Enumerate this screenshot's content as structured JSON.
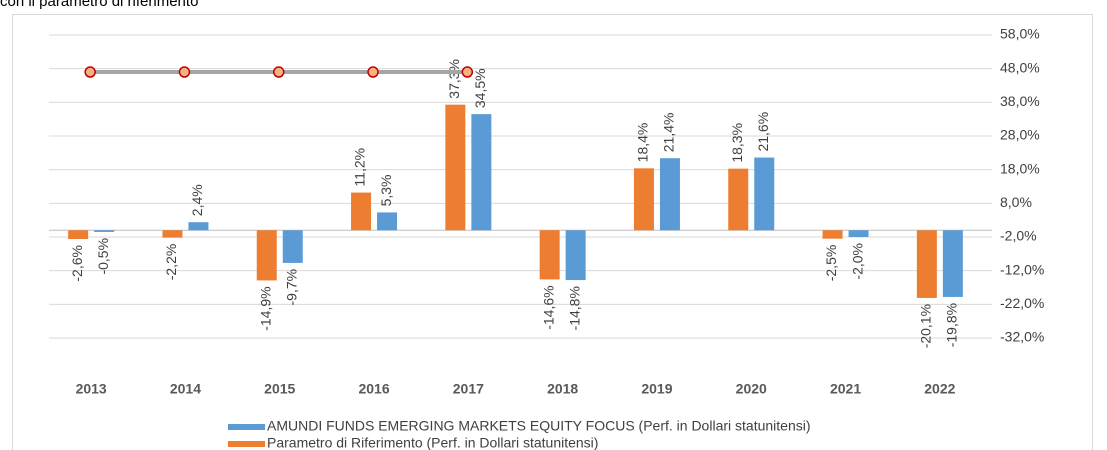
{
  "chart_data": {
    "type": "bar",
    "title": "con il parametro di riferimento",
    "categories": [
      "2013",
      "2014",
      "2015",
      "2016",
      "2017",
      "2018",
      "2019",
      "2020",
      "2021",
      "2022"
    ],
    "series": [
      {
        "name": "AMUNDI FUNDS EMERGING MARKETS EQUITY FOCUS (Perf. in Dollari statunitensi)",
        "color": "#5b9bd5",
        "values": [
          -0.5,
          2.4,
          -9.7,
          5.3,
          34.5,
          -14.8,
          21.4,
          21.6,
          -2.0,
          -19.8
        ],
        "value_labels": [
          "-0,5%",
          "2,4%",
          "-9,7%",
          "5,3%",
          "34,5%",
          "-14,8%",
          "21,4%",
          "21,6%",
          "-2,0%",
          "-19,8%"
        ]
      },
      {
        "name": "Parametro di Riferimento (Perf. in Dollari statunitensi)",
        "color": "#ed7d31",
        "values": [
          -2.6,
          -2.2,
          -14.9,
          11.2,
          37.3,
          -14.6,
          18.4,
          18.3,
          -2.5,
          -20.1
        ],
        "value_labels": [
          "-2,6%",
          "-2,2%",
          "-14,9%",
          "11,2%",
          "37,3%",
          "-14,6%",
          "18,4%",
          "18,3%",
          "-2,5%",
          "-20,1%"
        ]
      }
    ],
    "line_series": {
      "color": "#a5a5a5",
      "marker_color": "#c00000",
      "values": [
        47,
        47,
        47,
        47,
        47,
        null,
        null,
        null,
        null,
        null
      ]
    },
    "ylim": [
      -32,
      58
    ],
    "yticks": [
      {
        "value": 58,
        "label": "58,0%"
      },
      {
        "value": 48,
        "label": "48,0%"
      },
      {
        "value": 38,
        "label": "38,0%"
      },
      {
        "value": 28,
        "label": "28,0%"
      },
      {
        "value": 18,
        "label": "18,0%"
      },
      {
        "value": 8,
        "label": "8,0%"
      },
      {
        "value": -2,
        "label": "-2,0%"
      },
      {
        "value": -12,
        "label": "-12,0%"
      },
      {
        "value": -22,
        "label": "-22,0%"
      },
      {
        "value": -32,
        "label": "-32,0%"
      }
    ],
    "grid": true,
    "legend": "bottom"
  }
}
